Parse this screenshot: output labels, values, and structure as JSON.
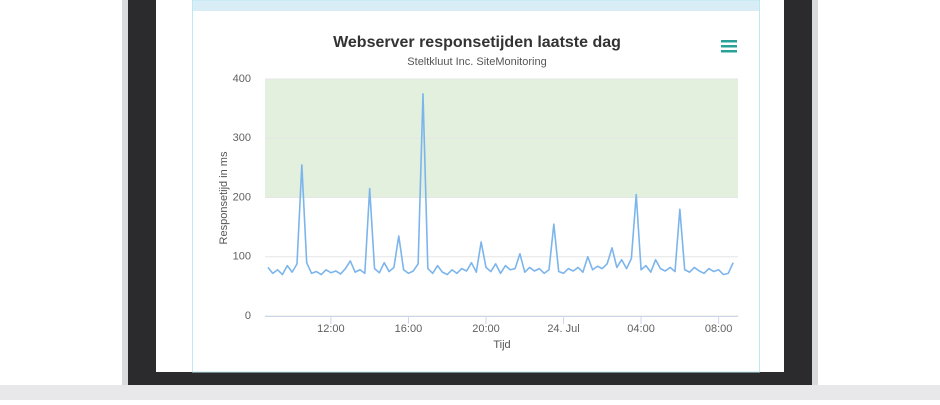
{
  "chart_data": {
    "type": "line",
    "title": "Webserver responsetijden laatste dag",
    "subtitle": "Steltkluut Inc. SiteMonitoring",
    "y_label": "Responsetijd in ms",
    "x_label": "Tijd",
    "x": [
      8.75,
      9,
      9.25,
      9.5,
      9.75,
      10,
      10.25,
      10.5,
      10.75,
      11,
      11.25,
      11.5,
      11.75,
      12,
      12.25,
      12.5,
      12.75,
      13,
      13.25,
      13.5,
      13.75,
      14,
      14.25,
      14.5,
      14.75,
      15,
      15.25,
      15.5,
      15.75,
      16,
      16.25,
      16.5,
      16.75,
      17,
      17.25,
      17.5,
      17.75,
      18,
      18.25,
      18.5,
      18.75,
      19,
      19.25,
      19.5,
      19.75,
      20,
      20.25,
      20.5,
      20.75,
      21,
      21.25,
      21.5,
      21.75,
      22,
      22.25,
      22.5,
      22.75,
      23,
      23.25,
      23.5,
      23.75,
      24,
      24.25,
      24.5,
      24.75,
      25,
      25.25,
      25.5,
      25.75,
      26,
      26.25,
      26.5,
      26.75,
      27,
      27.25,
      27.5,
      27.75,
      28,
      28.25,
      28.5,
      28.75,
      29,
      29.25,
      29.5,
      29.75,
      30,
      30.25,
      30.5,
      30.75,
      31,
      31.25,
      31.5,
      31.75,
      32,
      32.25,
      32.5,
      32.75
    ],
    "series": [
      {
        "name": "Responsetijd",
        "color": "#7cb5ec",
        "values": [
          82,
          72,
          78,
          70,
          85,
          74,
          88,
          255,
          90,
          72,
          75,
          70,
          78,
          73,
          76,
          71,
          80,
          93,
          74,
          78,
          72,
          215,
          80,
          73,
          90,
          75,
          82,
          135,
          78,
          72,
          76,
          88,
          375,
          80,
          72,
          85,
          74,
          70,
          78,
          72,
          80,
          76,
          90,
          74,
          125,
          82,
          75,
          88,
          72,
          85,
          78,
          80,
          105,
          74,
          82,
          76,
          80,
          72,
          78,
          155,
          75,
          72,
          80,
          76,
          82,
          74,
          100,
          78,
          84,
          80,
          88,
          115,
          82,
          95,
          80,
          97,
          205,
          78,
          85,
          74,
          95,
          80,
          76,
          82,
          75,
          180,
          78,
          74,
          82,
          76,
          72,
          80,
          75,
          78,
          70,
          72,
          90
        ]
      }
    ],
    "xlim": [
      8.6,
      33.0
    ],
    "xticks": [
      {
        "value": 12,
        "label": "12:00"
      },
      {
        "value": 16,
        "label": "16:00"
      },
      {
        "value": 20,
        "label": "20:00"
      },
      {
        "value": 24,
        "label": "24. Jul"
      },
      {
        "value": 28,
        "label": "04:00"
      },
      {
        "value": 32,
        "label": "08:00"
      }
    ],
    "ylim": [
      0,
      400
    ],
    "yticks": [
      0,
      100,
      200,
      300,
      400
    ],
    "grid": true,
    "plot_bands": [
      {
        "from": 200,
        "to": 400,
        "color": "#e2f0dd"
      }
    ]
  }
}
